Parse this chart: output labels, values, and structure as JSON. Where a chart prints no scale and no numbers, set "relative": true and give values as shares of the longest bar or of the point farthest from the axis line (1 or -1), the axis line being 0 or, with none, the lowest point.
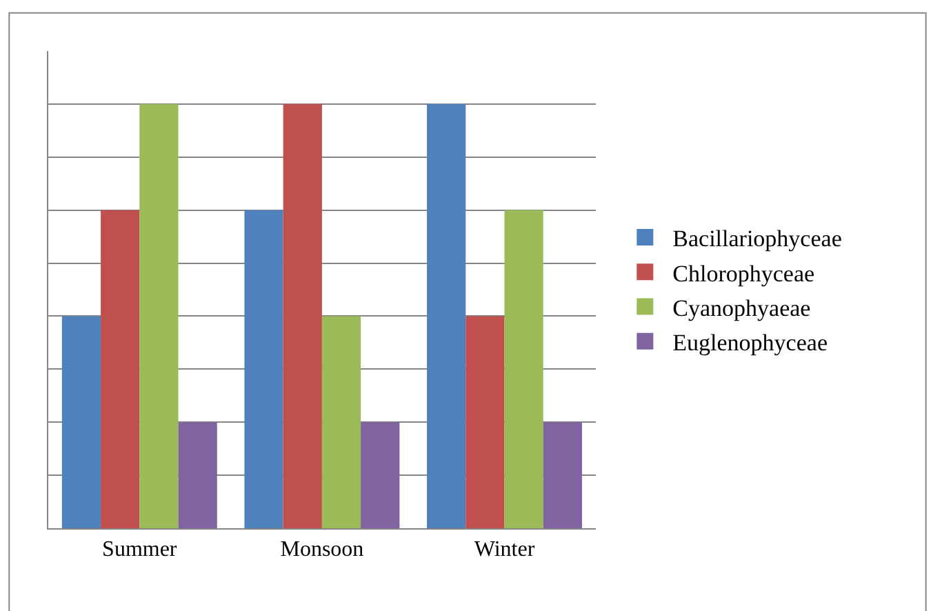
{
  "chart_data": {
    "type": "bar",
    "relative": true,
    "categories": [
      "Summer",
      "Monsoon",
      "Winter"
    ],
    "series": [
      {
        "name": "Bacillariophyceae",
        "color": "#4f81bd",
        "values": [
          0.5,
          0.75,
          1
        ]
      },
      {
        "name": "Chlorophyceae",
        "color": "#c0504d",
        "values": [
          0.75,
          1,
          0.5
        ]
      },
      {
        "name": "Cyanophyaeae",
        "color": "#9bbb59",
        "values": [
          1,
          0.5,
          0.75
        ]
      },
      {
        "name": "Euglenophyceae",
        "color": "#8064a2",
        "values": [
          0.25,
          0.25,
          0.25
        ]
      }
    ],
    "grid": "y",
    "legend": "right"
  }
}
